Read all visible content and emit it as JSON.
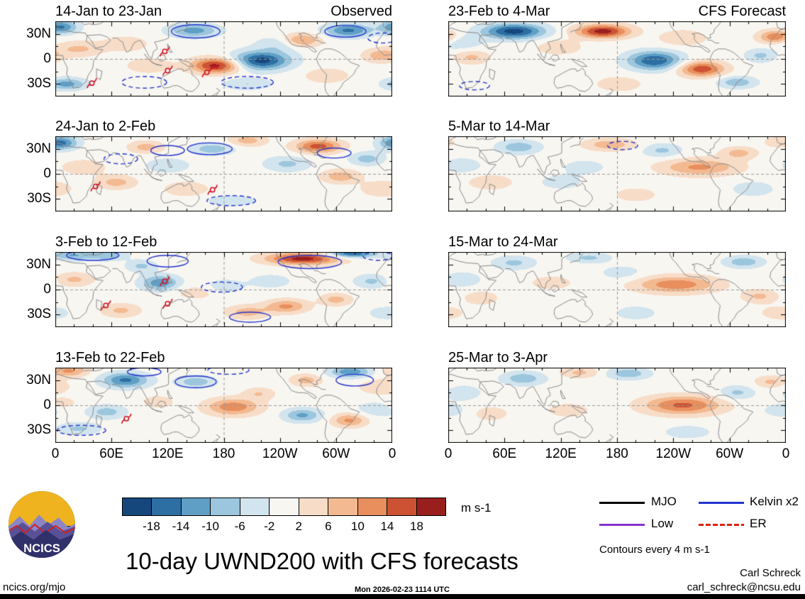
{
  "page": {
    "title_main": "10-day UWND200 with CFS forecasts",
    "logo_text": "NCICS",
    "footer": {
      "site": "ncics.org/mjo",
      "timestamp": "Mon 2026-02-23 1114 UTC",
      "author": "Carl Schreck",
      "email": "carl_schreck@ncsu.edu"
    }
  },
  "chart_data": {
    "type": "heatmap",
    "subtype": "filled-contour longitude-latitude anomaly maps",
    "variable": "10-day UWND200 anomaly",
    "units": "m s-1",
    "x_axis": {
      "ticks": [
        "0",
        "60E",
        "120E",
        "180",
        "120W",
        "60W",
        "0"
      ],
      "range_deg": [
        0,
        360
      ]
    },
    "y_axis": {
      "ticks": [
        "30N",
        "0",
        "30S"
      ],
      "range_deg": [
        -45,
        45
      ]
    },
    "colorbar": {
      "levels": [
        -18,
        -14,
        -10,
        -6,
        -2,
        2,
        6,
        10,
        14,
        18
      ],
      "colors": [
        "#16477c",
        "#2e6fa3",
        "#5f9fc6",
        "#9cc6dd",
        "#d2e4ee",
        "#f8f6f1",
        "#f7ddc8",
        "#f3ba92",
        "#e88f5d",
        "#cd5233",
        "#991f1e"
      ],
      "units": "m s-1"
    },
    "legend": [
      {
        "label": "MJO",
        "color": "#000000",
        "style": "solid"
      },
      {
        "label": "Kelvin x2",
        "color": "#2233cc",
        "style": "solid"
      },
      {
        "label": "Low",
        "color": "#8833cc",
        "style": "solid"
      },
      {
        "label": "ER",
        "color": "#dd2211",
        "style": "dashed"
      }
    ],
    "contour_note": "Contours every 4 m s-1",
    "anomaly_center_format": [
      "lon_deg",
      "lat_deg",
      "peak_m_s-1",
      "lon_radius_deg",
      "lat_radius_deg"
    ],
    "kelvin_contour_format": [
      "lon_deg",
      "lat_deg",
      "lon_radius_deg",
      "lat_radius_deg",
      "dashed"
    ],
    "storm_marker_format": [
      "lon_deg",
      "lat_deg",
      "label"
    ],
    "panels": [
      {
        "title": "14-Jan to 23-Jan",
        "corner_label": "Observed",
        "column": "observed",
        "anomaly_centers": [
          [
            5,
            38,
            -15,
            18,
            8
          ],
          [
            12,
            -30,
            -12,
            20,
            7
          ],
          [
            25,
            12,
            7,
            24,
            9
          ],
          [
            75,
            18,
            5,
            24,
            9
          ],
          [
            100,
            -8,
            5,
            24,
            9
          ],
          [
            148,
            34,
            -12,
            26,
            8
          ],
          [
            172,
            -8,
            20,
            26,
            9
          ],
          [
            205,
            -30,
            -6,
            25,
            7
          ],
          [
            220,
            -2,
            -20,
            30,
            11
          ],
          [
            262,
            22,
            12,
            20,
            8
          ],
          [
            313,
            34,
            -15,
            24,
            8
          ],
          [
            348,
            4,
            9,
            18,
            8
          ],
          [
            290,
            -20,
            5,
            24,
            9
          ],
          [
            240,
            18,
            -6,
            24,
            9
          ]
        ],
        "kelvin_contours": [
          [
            150,
            33,
            26,
            8,
            0
          ],
          [
            310,
            33,
            22,
            7,
            0
          ],
          [
            205,
            -28,
            28,
            7,
            1
          ],
          [
            95,
            -28,
            24,
            7,
            1
          ],
          [
            350,
            25,
            16,
            6,
            1
          ]
        ],
        "storm_markers": [
          [
            117,
            9,
            ""
          ],
          [
            120,
            -14,
            ""
          ],
          [
            162,
            -16,
            "16"
          ],
          [
            39,
            -29,
            ""
          ]
        ]
      },
      {
        "title": "24-Jan to 2-Feb",
        "column": "observed",
        "anomaly_centers": [
          [
            5,
            37,
            -16,
            18,
            8
          ],
          [
            30,
            8,
            5,
            24,
            9
          ],
          [
            65,
            -10,
            8,
            20,
            8
          ],
          [
            97,
            32,
            8,
            18,
            7
          ],
          [
            140,
            -18,
            5,
            24,
            9
          ],
          [
            168,
            30,
            -9,
            22,
            7
          ],
          [
            205,
            40,
            8,
            20,
            7
          ],
          [
            248,
            12,
            -7,
            24,
            9
          ],
          [
            281,
            33,
            16,
            24,
            8
          ],
          [
            305,
            -3,
            9,
            20,
            8
          ],
          [
            188,
            -32,
            -6,
            24,
            6
          ],
          [
            333,
            18,
            -8,
            18,
            8
          ],
          [
            352,
            -18,
            6,
            24,
            9
          ],
          [
            120,
            10,
            -5,
            24,
            9
          ]
        ],
        "kelvin_contours": [
          [
            165,
            30,
            24,
            7,
            0
          ],
          [
            70,
            18,
            18,
            6,
            1
          ],
          [
            188,
            -32,
            26,
            6,
            1
          ],
          [
            298,
            25,
            18,
            6,
            0
          ],
          [
            120,
            28,
            18,
            6,
            0
          ]
        ],
        "storm_markers": [
          [
            43,
            -15,
            ""
          ],
          [
            168,
            -19,
            ""
          ]
        ]
      },
      {
        "title": "3-Feb to 12-Feb",
        "column": "observed",
        "anomaly_centers": [
          [
            18,
            41,
            -10,
            22,
            6
          ],
          [
            55,
            41,
            -9,
            20,
            6
          ],
          [
            20,
            12,
            7,
            20,
            8
          ],
          [
            70,
            -25,
            7,
            20,
            8
          ],
          [
            112,
            8,
            -13,
            20,
            9
          ],
          [
            92,
            28,
            -7,
            16,
            7
          ],
          [
            150,
            -3,
            4,
            24,
            9
          ],
          [
            180,
            4,
            -5,
            20,
            8
          ],
          [
            205,
            -27,
            8,
            22,
            8
          ],
          [
            247,
            -20,
            11,
            22,
            8
          ],
          [
            265,
            37,
            20,
            38,
            7
          ],
          [
            316,
            43,
            -18,
            26,
            5
          ],
          [
            338,
            10,
            -7,
            18,
            8
          ],
          [
            300,
            -12,
            8,
            16,
            7
          ],
          [
            355,
            -28,
            -6,
            18,
            7
          ],
          [
            230,
            10,
            -4,
            24,
            9
          ]
        ],
        "kelvin_contours": [
          [
            40,
            41,
            28,
            6,
            0
          ],
          [
            120,
            34,
            22,
            7,
            0
          ],
          [
            272,
            33,
            34,
            8,
            0
          ],
          [
            178,
            3,
            22,
            6,
            1
          ],
          [
            208,
            -33,
            22,
            6,
            0
          ],
          [
            345,
            40,
            16,
            5,
            1
          ]
        ],
        "storm_markers": [
          [
            54,
            -19,
            ""
          ],
          [
            117,
            10,
            ""
          ],
          [
            120,
            -17,
            ""
          ]
        ]
      },
      {
        "title": "13-Feb to 22-Feb",
        "column": "observed",
        "anomaly_centers": [
          [
            14,
            41,
            11,
            20,
            7
          ],
          [
            8,
            2,
            5,
            14,
            7
          ],
          [
            25,
            -28,
            -7,
            22,
            7
          ],
          [
            75,
            30,
            -15,
            24,
            9
          ],
          [
            55,
            -8,
            -8,
            20,
            8
          ],
          [
            110,
            4,
            5,
            16,
            7
          ],
          [
            150,
            28,
            -9,
            20,
            7
          ],
          [
            190,
            -2,
            13,
            28,
            10
          ],
          [
            218,
            14,
            6,
            16,
            7
          ],
          [
            264,
            -12,
            -11,
            20,
            8
          ],
          [
            268,
            30,
            8,
            16,
            7
          ],
          [
            315,
            40,
            -13,
            22,
            7
          ],
          [
            314,
            -18,
            11,
            18,
            8
          ],
          [
            350,
            22,
            6,
            24,
            9
          ],
          [
            345,
            -5,
            -5,
            24,
            9
          ]
        ],
        "kelvin_contours": [
          [
            150,
            28,
            22,
            7,
            0
          ],
          [
            320,
            30,
            20,
            7,
            0
          ],
          [
            28,
            -30,
            26,
            6,
            1
          ],
          [
            185,
            42,
            22,
            5,
            1
          ],
          [
            95,
            40,
            18,
            5,
            0
          ]
        ],
        "storm_markers": [
          [
            76,
            -16,
            ""
          ]
        ]
      },
      {
        "title": "23-Feb to 4-Mar",
        "corner_label": "CFS Forecast",
        "column": "forecast",
        "anomaly_centers": [
          [
            70,
            33,
            -20,
            32,
            9
          ],
          [
            25,
            2,
            7,
            18,
            8
          ],
          [
            118,
            14,
            5,
            24,
            9
          ],
          [
            165,
            33,
            20,
            28,
            8
          ],
          [
            220,
            -2,
            -18,
            28,
            11
          ],
          [
            270,
            -12,
            17,
            24,
            9
          ],
          [
            308,
            -28,
            -9,
            20,
            7
          ],
          [
            350,
            26,
            15,
            18,
            8
          ],
          [
            333,
            4,
            -7,
            16,
            8
          ],
          [
            182,
            -30,
            5,
            24,
            9
          ],
          [
            10,
            20,
            -6,
            24,
            9
          ],
          [
            250,
            25,
            6,
            24,
            9
          ]
        ],
        "kelvin_contours": [
          [
            28,
            -32,
            16,
            5,
            1
          ]
        ],
        "storm_markers": []
      },
      {
        "title": "5-Mar to 14-Mar",
        "column": "forecast",
        "anomaly_centers": [
          [
            15,
            10,
            -5,
            20,
            9
          ],
          [
            45,
            -10,
            5,
            24,
            9
          ],
          [
            75,
            32,
            -9,
            22,
            8
          ],
          [
            120,
            -10,
            -4,
            24,
            9
          ],
          [
            172,
            35,
            9,
            26,
            7
          ],
          [
            228,
            28,
            -7,
            20,
            8
          ],
          [
            268,
            8,
            11,
            40,
            10
          ],
          [
            310,
            25,
            8,
            18,
            7
          ],
          [
            325,
            -18,
            -6,
            20,
            8
          ],
          [
            352,
            38,
            6,
            14,
            6
          ],
          [
            200,
            -25,
            4,
            24,
            9
          ],
          [
            145,
            8,
            -4,
            24,
            9
          ]
        ],
        "kelvin_contours": [
          [
            186,
            34,
            16,
            5,
            1
          ]
        ],
        "storm_markers": []
      },
      {
        "title": "15-Mar to 24-Mar",
        "column": "forecast",
        "anomaly_centers": [
          [
            15,
            12,
            -5,
            20,
            9
          ],
          [
            35,
            -10,
            5,
            18,
            8
          ],
          [
            70,
            32,
            -7,
            22,
            8
          ],
          [
            150,
            38,
            -7,
            22,
            6
          ],
          [
            110,
            8,
            4,
            24,
            9
          ],
          [
            243,
            6,
            13,
            42,
            10
          ],
          [
            315,
            33,
            -9,
            20,
            7
          ],
          [
            332,
            -8,
            7,
            18,
            8
          ],
          [
            200,
            -28,
            -4,
            24,
            9
          ],
          [
            355,
            -28,
            4,
            24,
            9
          ],
          [
            185,
            20,
            -4,
            24,
            9
          ]
        ],
        "kelvin_contours": [],
        "storm_markers": []
      },
      {
        "title": "25-Mar to 3-Apr",
        "column": "forecast",
        "anomaly_centers": [
          [
            15,
            15,
            -5,
            20,
            9
          ],
          [
            45,
            -10,
            5,
            18,
            8
          ],
          [
            80,
            32,
            -9,
            22,
            8
          ],
          [
            140,
            39,
            7,
            20,
            6
          ],
          [
            192,
            38,
            -9,
            22,
            7
          ],
          [
            250,
            0,
            15,
            40,
            11
          ],
          [
            308,
            15,
            -7,
            18,
            8
          ],
          [
            344,
            28,
            7,
            16,
            7
          ],
          [
            255,
            -32,
            -6,
            22,
            7
          ],
          [
            128,
            -6,
            4,
            24,
            9
          ],
          [
            357,
            -6,
            -4,
            24,
            9
          ]
        ],
        "kelvin_contours": [],
        "storm_markers": []
      }
    ]
  }
}
